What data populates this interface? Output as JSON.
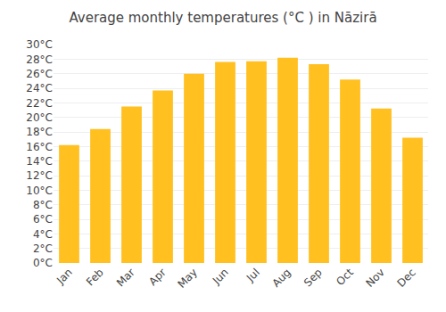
{
  "chart_data": {
    "type": "bar",
    "title": "Average monthly temperatures (°C ) in Nāzirā",
    "categories": [
      "Jan",
      "Feb",
      "Mar",
      "Apr",
      "May",
      "Jun",
      "Jul",
      "Aug",
      "Sep",
      "Oct",
      "Nov",
      "Dec"
    ],
    "values": [
      16.2,
      18.4,
      21.5,
      23.7,
      26.0,
      27.6,
      27.7,
      28.2,
      27.3,
      25.2,
      21.2,
      17.2
    ],
    "color": "#FFC020",
    "ylim": [
      0,
      30
    ],
    "yticks": [
      {
        "value": 0,
        "label": "0°C"
      },
      {
        "value": 2,
        "label": "2°C"
      },
      {
        "value": 4,
        "label": "4°C"
      },
      {
        "value": 6,
        "label": "6°C"
      },
      {
        "value": 8,
        "label": "8°C"
      },
      {
        "value": 10,
        "label": "10°C"
      },
      {
        "value": 12,
        "label": "12°C"
      },
      {
        "value": 14,
        "label": "14°C"
      },
      {
        "value": 16,
        "label": "16°C"
      },
      {
        "value": 18,
        "label": "18°C"
      },
      {
        "value": 20,
        "label": "20°C"
      },
      {
        "value": 22,
        "label": "22°C"
      },
      {
        "value": 24,
        "label": "24°C"
      },
      {
        "value": 26,
        "label": "26°C"
      },
      {
        "value": 28,
        "label": "28°C"
      },
      {
        "value": 30,
        "label": "30°C"
      }
    ],
    "grid": true
  }
}
